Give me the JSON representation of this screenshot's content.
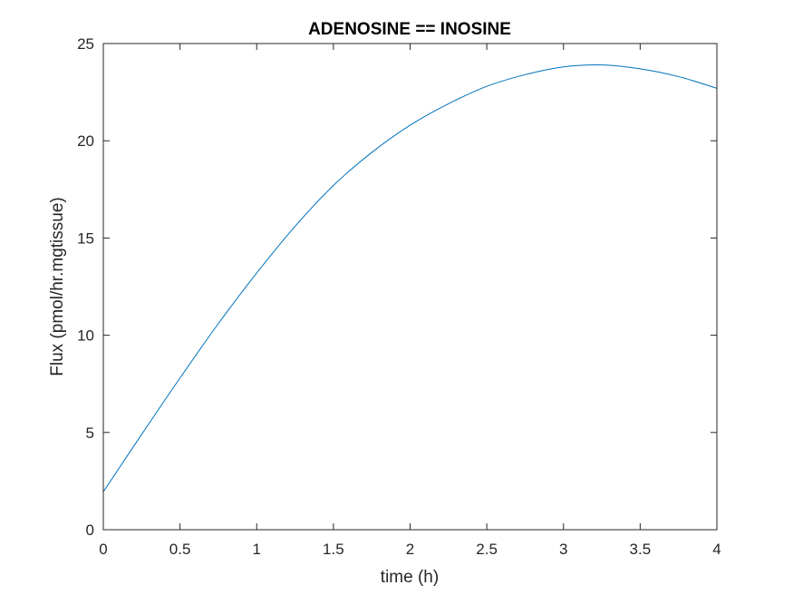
{
  "chart_data": {
    "type": "line",
    "title": "ADENOSINE == INOSINE",
    "xlabel": "time (h)",
    "ylabel": "Flux (pmol/hr.mgtissue)",
    "xlim": [
      0,
      4
    ],
    "ylim": [
      0,
      25
    ],
    "xticks": [
      "0",
      "0.5",
      "1",
      "1.5",
      "2",
      "2.5",
      "3",
      "3.5",
      "4"
    ],
    "yticks": [
      "0",
      "5",
      "10",
      "15",
      "20",
      "25"
    ],
    "grid": false,
    "legend": "none",
    "line_color": "#0072BD",
    "series": [
      {
        "x": [
          0,
          0.25,
          0.5,
          0.75,
          1.0,
          1.25,
          1.5,
          1.75,
          2.0,
          2.25,
          2.5,
          2.75,
          3.0,
          3.25,
          3.5,
          3.75,
          4.0
        ],
        "values": [
          1.95,
          4.9,
          7.8,
          10.6,
          13.2,
          15.6,
          17.7,
          19.4,
          20.8,
          21.9,
          22.8,
          23.4,
          23.8,
          23.9,
          23.7,
          23.3,
          22.7
        ]
      }
    ]
  }
}
